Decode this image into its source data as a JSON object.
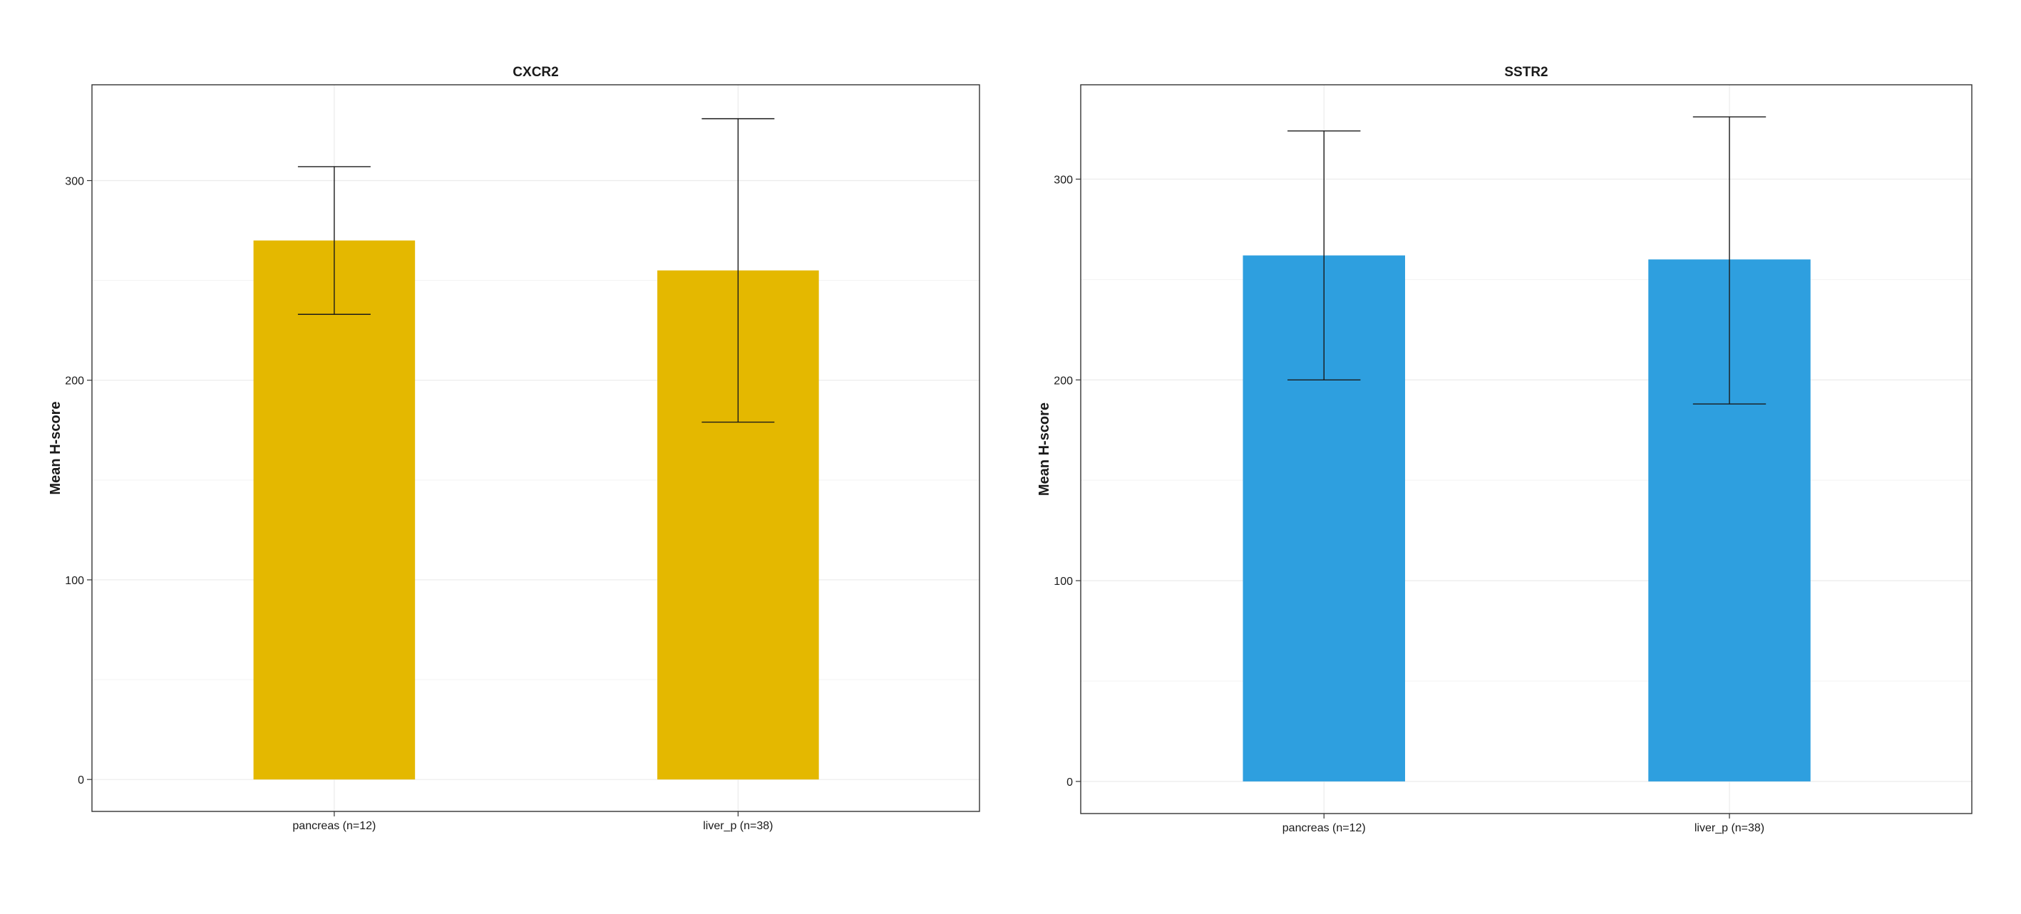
{
  "chart_data": [
    {
      "type": "bar",
      "title": "CXCR2",
      "ylabel": "Mean H-score",
      "xlabel": "",
      "categories": [
        "pancreas (n=12)",
        "liver_p (n=38)"
      ],
      "values": [
        270,
        255
      ],
      "error_low": [
        233,
        179
      ],
      "error_high": [
        307,
        331
      ],
      "ylim": [
        -16,
        348
      ],
      "yticks": [
        0,
        100,
        200,
        300
      ],
      "grid": true,
      "color": "#E4B800"
    },
    {
      "type": "bar",
      "title": "SSTR2",
      "ylabel": "Mean H-score",
      "xlabel": "",
      "categories": [
        "pancreas (n=12)",
        "liver_p (n=38)"
      ],
      "values": [
        262,
        260
      ],
      "error_low": [
        200,
        188
      ],
      "error_high": [
        324,
        331
      ],
      "ylim": [
        -16,
        347
      ],
      "yticks": [
        0,
        100,
        200,
        300
      ],
      "grid": true,
      "color": "#2E9FDF"
    }
  ]
}
